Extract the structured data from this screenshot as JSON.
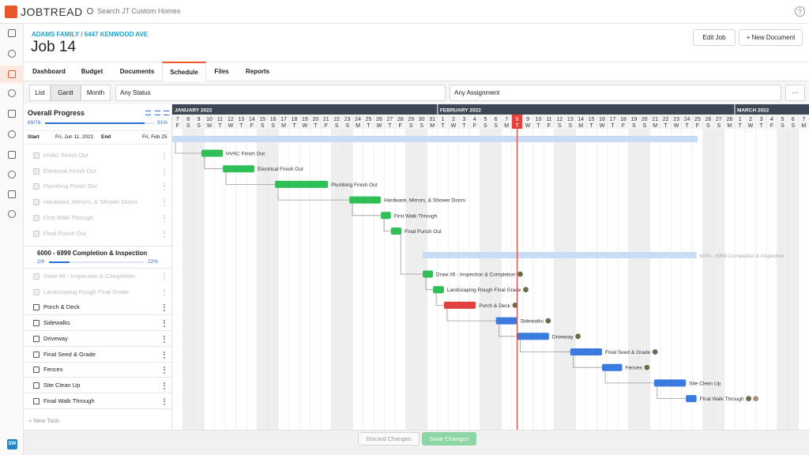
{
  "app": {
    "logo": "JOBTREAD",
    "search": "Search JT Custom Homes",
    "help": "?",
    "user_initials": "SW"
  },
  "job": {
    "breadcrumb": "ADAMS FAMILY / 6447 KENWOOD AVE",
    "title": "Job 14",
    "actions": [
      "Edit Job",
      "+ New Document"
    ]
  },
  "tabs": [
    "Dashboard",
    "Budget",
    "Documents",
    "Schedule",
    "Files",
    "Reports"
  ],
  "active_tab": "Schedule",
  "views": [
    "List",
    "Gantt",
    "Month"
  ],
  "active_view": "Gantt",
  "filters": {
    "status": "Any Status",
    "assignment": "Any Assignment",
    "more": "···"
  },
  "progress": {
    "title": "Overall Progress",
    "count": "69/76",
    "percent": "91%",
    "start_label": "Start",
    "start": "Fri, Jun 11, 2021",
    "end_label": "End",
    "end": "Fri, Feb 25"
  },
  "sections": [
    {
      "tasks": [
        {
          "name": "HVAC Finish Out",
          "done": true
        },
        {
          "name": "Electrical Finish Out",
          "done": true
        },
        {
          "name": "Plumbing Finish Out",
          "done": true
        },
        {
          "name": "Hardware, Mirrors, & Shower Doors",
          "done": true
        },
        {
          "name": "First Walk Through",
          "done": true
        },
        {
          "name": "Final Punch Out",
          "done": true
        }
      ]
    },
    {
      "name": "6000 - 6999 Completion & Inspection",
      "count": "2/9",
      "percent": "22%",
      "tasks": [
        {
          "name": "Draw #6 - Inspection & Completion",
          "done": true
        },
        {
          "name": "Landscaping Rough Final Grade",
          "done": true
        },
        {
          "name": "Porch & Deck",
          "done": false
        },
        {
          "name": "Sidewalks",
          "done": false
        },
        {
          "name": "Driveway",
          "done": false
        },
        {
          "name": "Final Seed & Grade",
          "done": false
        },
        {
          "name": "Fences",
          "done": false
        },
        {
          "name": "Site Clean Up",
          "done": false
        },
        {
          "name": "Final Walk Through",
          "done": false
        }
      ]
    }
  ],
  "new_task": "+ New Task",
  "gantt": {
    "months": [
      "JANUARY 2022",
      "FEBRUARY 2022",
      "MARCH 2022"
    ],
    "days": [
      7,
      8,
      9,
      10,
      11,
      12,
      13,
      14,
      15,
      16,
      17,
      18,
      19,
      20,
      21,
      22,
      23,
      24,
      25,
      26,
      27,
      28,
      29,
      30,
      31,
      1,
      2,
      3,
      4,
      5,
      6,
      7,
      8,
      9,
      10,
      11,
      12,
      13,
      14,
      15,
      16,
      17,
      18,
      19,
      20,
      21,
      22,
      23,
      24,
      25,
      26,
      27,
      28,
      1,
      2,
      3,
      4,
      5,
      6,
      7
    ],
    "weekdays": [
      "F",
      "S",
      "S",
      "M",
      "T",
      "W",
      "T",
      "F",
      "S",
      "S",
      "M",
      "T",
      "W",
      "T",
      "F",
      "S",
      "S",
      "M",
      "T",
      "W",
      "T",
      "F",
      "S",
      "S",
      "M",
      "T",
      "W",
      "T",
      "F",
      "S",
      "S",
      "M",
      "T",
      "W",
      "T",
      "F",
      "S",
      "S",
      "M",
      "T",
      "W",
      "T",
      "F",
      "S",
      "S",
      "M",
      "T",
      "W",
      "T",
      "F",
      "S",
      "S",
      "M",
      "T",
      "W",
      "T",
      "F",
      "S",
      "S",
      "M"
    ],
    "today": {
      "month": 1,
      "day": 8
    }
  },
  "footer": {
    "discard": "Discard Changes",
    "save": "Save Changes"
  }
}
